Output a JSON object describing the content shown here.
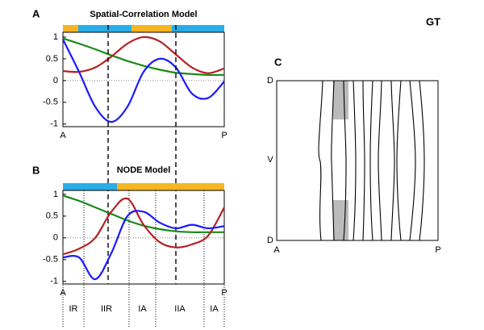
{
  "panel_labels": [
    "A",
    "B",
    "C"
  ],
  "corner_label": "GT",
  "chart_data": [
    {
      "type": "line",
      "title": "Spatial-Correlation Model",
      "x": [
        0,
        0.1,
        0.2,
        0.3,
        0.4,
        0.5,
        0.6,
        0.7,
        0.8,
        0.9,
        1
      ],
      "xlim": [
        0,
        1
      ],
      "xticks": [
        {
          "value": 0,
          "label": "A"
        },
        {
          "value": 1,
          "label": "P"
        }
      ],
      "ylim": [
        -1.06,
        1.11
      ],
      "yticks": [
        -1,
        -0.5,
        0,
        0.5,
        1
      ],
      "zero_line": true,
      "bands": [
        {
          "start": 0,
          "end": 0.095,
          "color": "#f7b520"
        },
        {
          "start": 0.095,
          "end": 0.425,
          "color": "#27aee8"
        },
        {
          "start": 0.425,
          "end": 0.675,
          "color": "#f7b520"
        },
        {
          "start": 0.675,
          "end": 1,
          "color": "#27aee8"
        }
      ],
      "dashed_x": [
        0.28,
        0.7
      ],
      "series": [
        {
          "color": "#1a8a1a",
          "values": [
            0.97,
            0.85,
            0.72,
            0.58,
            0.45,
            0.34,
            0.25,
            0.18,
            0.15,
            0.13,
            0.13
          ]
        },
        {
          "color": "#b22222",
          "values": [
            0.22,
            0.2,
            0.3,
            0.55,
            0.85,
            1.0,
            0.9,
            0.6,
            0.3,
            0.17,
            0.28
          ]
        },
        {
          "color": "#1a1aff",
          "values": [
            0.95,
            0.2,
            -0.6,
            -0.95,
            -0.6,
            0.2,
            0.5,
            0.3,
            -0.3,
            -0.4,
            -0.02
          ]
        }
      ]
    },
    {
      "type": "line",
      "title": "NODE Model",
      "x": [
        0,
        0.1,
        0.2,
        0.3,
        0.4,
        0.5,
        0.6,
        0.7,
        0.8,
        0.9,
        1
      ],
      "xlim": [
        0,
        1
      ],
      "xticks": [
        {
          "value": 0,
          "label": "A"
        },
        {
          "value": 1,
          "label": "P"
        }
      ],
      "ylim": [
        -1.06,
        1.09
      ],
      "yticks": [
        -1,
        -0.5,
        0,
        0.5,
        1
      ],
      "zero_line": true,
      "bands": [
        {
          "start": 0,
          "end": 0.335,
          "color": "#27aee8"
        },
        {
          "start": 0.335,
          "end": 1,
          "color": "#f7b520"
        }
      ],
      "regions": [
        {
          "label": "IR",
          "start": 0,
          "end": 0.13
        },
        {
          "label": "IIR",
          "start": 0.13,
          "end": 0.41
        },
        {
          "label": "IA",
          "start": 0.41,
          "end": 0.575
        },
        {
          "label": "IIA",
          "start": 0.575,
          "end": 0.875
        },
        {
          "label": "IA",
          "start": 0.875,
          "end": 1
        }
      ],
      "series": [
        {
          "color": "#1a8a1a",
          "values": [
            0.97,
            0.85,
            0.7,
            0.55,
            0.4,
            0.28,
            0.2,
            0.15,
            0.13,
            0.13,
            0.13
          ]
        },
        {
          "color": "#b22222",
          "values": [
            -0.38,
            -0.25,
            0.0,
            0.6,
            0.9,
            0.3,
            -0.1,
            -0.22,
            -0.15,
            0.05,
            0.7
          ]
        },
        {
          "color": "#1a1aff",
          "values": [
            -0.45,
            -0.45,
            -0.95,
            -0.35,
            0.5,
            0.6,
            0.35,
            0.22,
            0.3,
            0.22,
            0.27
          ]
        }
      ]
    }
  ],
  "panel_c": {
    "top_label": "D",
    "middle_label": "V",
    "bottom_label": "D",
    "left_label": "A",
    "right_label": "P"
  }
}
